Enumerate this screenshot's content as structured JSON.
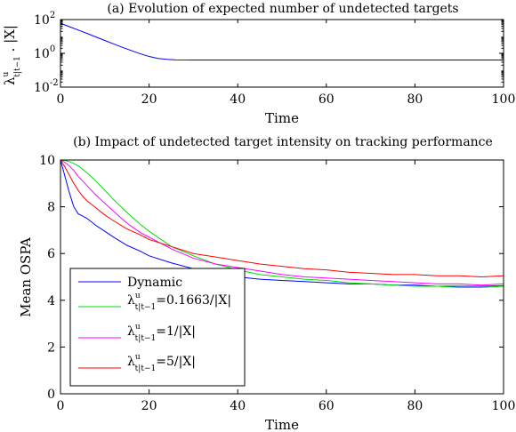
{
  "chart_data": [
    {
      "type": "line",
      "title": "(a) Evolution of expected number of undetected targets",
      "xlabel": "Time",
      "ylabel": "λᵘₜ|ₜ₋₁ . |X|",
      "ylabel_parts": {
        "sym": "λ",
        "sup": "u",
        "sub": "t|t−1",
        "rest": " . |X|"
      },
      "yscale": "log",
      "xlim": [
        0,
        100
      ],
      "ylim": [
        0.01,
        100
      ],
      "xticks": [
        "0",
        "20",
        "40",
        "60",
        "80",
        "100"
      ],
      "yticks": [
        {
          "base": "10",
          "exp": "2"
        },
        {
          "base": "10",
          "exp": "0"
        },
        {
          "base": "10",
          "exp": "-2"
        }
      ],
      "series": [
        {
          "color": "#0000ff",
          "x": [
            0,
            2,
            4,
            6,
            8,
            10,
            12,
            14,
            16,
            18,
            20,
            22,
            24,
            26,
            30,
            40,
            60,
            80,
            100
          ],
          "y": [
            60,
            38,
            24,
            15,
            9.3,
            5.8,
            3.6,
            2.25,
            1.45,
            0.95,
            0.65,
            0.5,
            0.44,
            0.41,
            0.4,
            0.4,
            0.4,
            0.4,
            0.4
          ]
        }
      ]
    },
    {
      "type": "line",
      "title": "(b) Impact of undetected target intensity on tracking performance",
      "xlabel": "Time",
      "ylabel": "Mean OSPA",
      "xlim": [
        0,
        100
      ],
      "ylim": [
        0,
        10
      ],
      "xticks": [
        "0",
        "20",
        "40",
        "60",
        "80",
        "100"
      ],
      "yticks": [
        "0",
        "2",
        "4",
        "6",
        "8",
        "10"
      ],
      "legend": {
        "position": "bottom-left"
      },
      "series": [
        {
          "name": "Dynamic",
          "label_parts": {
            "text": "Dynamic"
          },
          "color": "#0000ff",
          "x": [
            0,
            1,
            2,
            3,
            4,
            5,
            6,
            8,
            10,
            12,
            15,
            18,
            20,
            25,
            30,
            35,
            40,
            45,
            50,
            55,
            60,
            65,
            70,
            75,
            80,
            85,
            90,
            95,
            100
          ],
          "y": [
            10,
            9.3,
            8.6,
            8.0,
            7.7,
            7.6,
            7.5,
            7.2,
            6.95,
            6.7,
            6.35,
            6.1,
            5.9,
            5.6,
            5.35,
            5.15,
            5.0,
            4.9,
            4.85,
            4.8,
            4.75,
            4.7,
            4.7,
            4.65,
            4.65,
            4.6,
            4.6,
            4.6,
            4.62
          ]
        },
        {
          "name": "λᵘₜ|ₜ₋₁=0.1663/|X|",
          "label_parts": {
            "sym": "λ",
            "sup": "u",
            "sub": "t|t−1",
            "rest": "=0.1663/|X|"
          },
          "color": "#00dd00",
          "x": [
            0,
            1,
            2,
            3,
            4,
            5,
            6,
            8,
            10,
            12,
            15,
            18,
            20,
            25,
            30,
            35,
            40,
            45,
            50,
            55,
            60,
            65,
            70,
            75,
            80,
            85,
            90,
            95,
            100
          ],
          "y": [
            10,
            9.98,
            9.93,
            9.85,
            9.75,
            9.6,
            9.45,
            9.1,
            8.7,
            8.3,
            7.75,
            7.25,
            6.95,
            6.3,
            5.9,
            5.55,
            5.3,
            5.1,
            5.0,
            4.9,
            4.85,
            4.75,
            4.7,
            4.65,
            4.6,
            4.6,
            4.55,
            4.55,
            4.6
          ]
        },
        {
          "name": "λᵘₜ|ₜ₋₁=1/|X|",
          "label_parts": {
            "sym": "λ",
            "sup": "u",
            "sub": "t|t−1",
            "rest": "=1/|X|"
          },
          "color": "#ff00ff",
          "x": [
            0,
            1,
            2,
            3,
            4,
            5,
            6,
            8,
            10,
            12,
            15,
            18,
            20,
            25,
            30,
            35,
            40,
            45,
            50,
            55,
            60,
            65,
            70,
            75,
            80,
            85,
            90,
            95,
            100
          ],
          "y": [
            10,
            9.9,
            9.75,
            9.55,
            9.3,
            9.1,
            8.9,
            8.5,
            8.15,
            7.8,
            7.3,
            6.9,
            6.7,
            6.2,
            5.8,
            5.55,
            5.4,
            5.25,
            5.1,
            5.0,
            4.95,
            4.9,
            4.85,
            4.8,
            4.75,
            4.7,
            4.7,
            4.65,
            4.7
          ]
        },
        {
          "name": "λᵘₜ|ₜ₋₁=5/|X|",
          "label_parts": {
            "sym": "λ",
            "sup": "u",
            "sub": "t|t−1",
            "rest": "=5/|X|"
          },
          "color": "#ff0000",
          "x": [
            0,
            1,
            2,
            3,
            4,
            5,
            6,
            8,
            10,
            12,
            15,
            18,
            20,
            25,
            30,
            35,
            40,
            45,
            50,
            55,
            60,
            65,
            70,
            75,
            80,
            85,
            90,
            95,
            100
          ],
          "y": [
            10,
            9.7,
            9.35,
            9.0,
            8.7,
            8.45,
            8.25,
            7.95,
            7.65,
            7.4,
            7.05,
            6.8,
            6.6,
            6.3,
            6.0,
            5.85,
            5.7,
            5.55,
            5.45,
            5.35,
            5.3,
            5.2,
            5.15,
            5.1,
            5.1,
            5.05,
            5.05,
            5.0,
            5.05
          ]
        }
      ]
    }
  ]
}
